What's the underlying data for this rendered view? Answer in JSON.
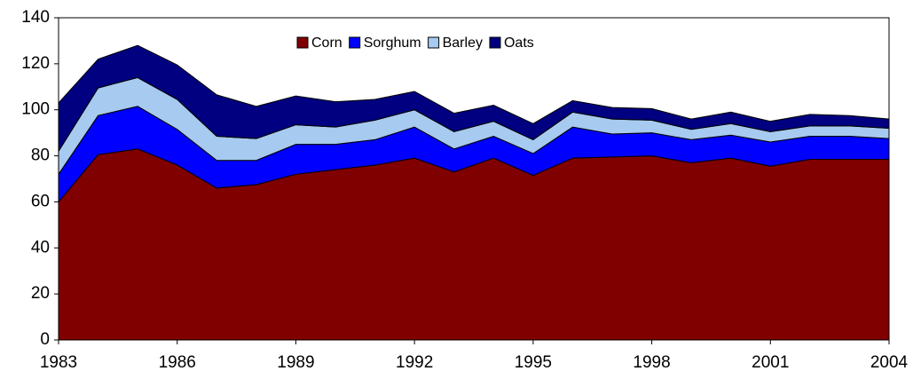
{
  "chart_data": {
    "type": "stacked-area",
    "x": [
      1983,
      1984,
      1985,
      1986,
      1987,
      1988,
      1989,
      1990,
      1991,
      1992,
      1993,
      1994,
      1995,
      1996,
      1997,
      1998,
      1999,
      2000,
      2001,
      2002,
      2003,
      2004
    ],
    "series": [
      {
        "name": "Corn",
        "color": "#800000",
        "values": [
          60,
          80.5,
          83,
          76,
          66,
          67.5,
          72,
          74,
          76,
          79,
          73,
          79,
          71.5,
          79,
          79.5,
          80,
          77,
          79,
          75.5,
          78.5,
          78.5,
          78.5
        ]
      },
      {
        "name": "Sorghum",
        "color": "#0000ff",
        "values": [
          12,
          17,
          18.5,
          15.5,
          12,
          10.5,
          13,
          11,
          11,
          13.5,
          10,
          9.5,
          9.5,
          13.5,
          10,
          10,
          10,
          10,
          10.5,
          10,
          10,
          9
        ]
      },
      {
        "name": "Barley",
        "color": "#a6caf0",
        "values": [
          10,
          12,
          12.5,
          13,
          10.5,
          9.5,
          8.5,
          7.5,
          8.5,
          7.5,
          7.5,
          6.5,
          6,
          6.5,
          6.5,
          5.5,
          4.5,
          5,
          4.5,
          4.5,
          4.5,
          4.5
        ]
      },
      {
        "name": "Oats",
        "color": "#000080",
        "values": [
          21,
          12.5,
          14,
          15,
          18,
          14,
          12.5,
          11,
          9,
          8,
          8,
          7,
          7,
          5,
          5,
          5,
          4.5,
          5,
          4.5,
          5,
          4.5,
          4
        ]
      }
    ],
    "xlim": [
      1983,
      2004
    ],
    "xticks": [
      1983,
      1986,
      1989,
      1992,
      1995,
      1998,
      2001,
      2004
    ],
    "ylim": [
      0,
      140
    ],
    "yticks": [
      0,
      20,
      40,
      60,
      80,
      100,
      120,
      140
    ],
    "legend": "top"
  }
}
